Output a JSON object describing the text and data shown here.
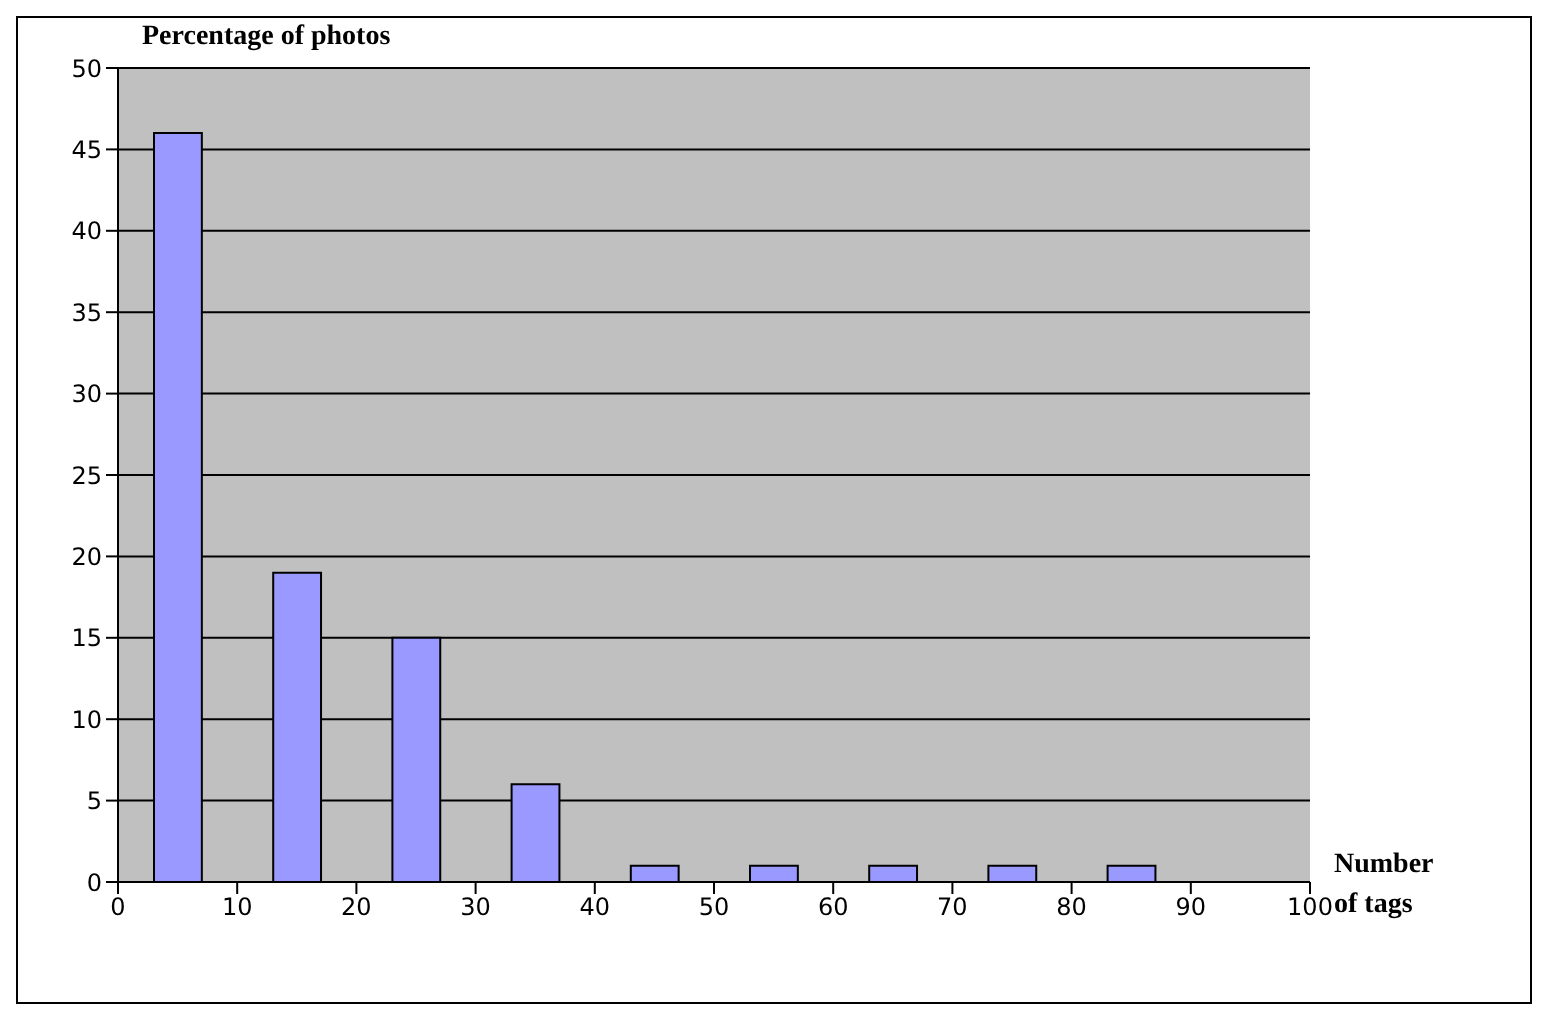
{
  "chart_data": {
    "type": "bar",
    "xlabel": "Number\nof tags",
    "ylabel": "Percentage of photos",
    "x": [
      5,
      15,
      25,
      35,
      45,
      55,
      65,
      75,
      85
    ],
    "values": [
      46,
      19,
      15,
      6,
      1,
      1,
      1,
      1,
      1
    ],
    "color": "#9999ff",
    "xlim": [
      0,
      100
    ],
    "xticks": [
      0,
      10,
      20,
      30,
      40,
      50,
      60,
      70,
      80,
      90,
      100
    ],
    "ylim": [
      0,
      50
    ],
    "yticks": [
      0,
      5,
      10,
      15,
      20,
      25,
      30,
      35,
      40,
      45,
      50
    ],
    "grid": "y"
  }
}
